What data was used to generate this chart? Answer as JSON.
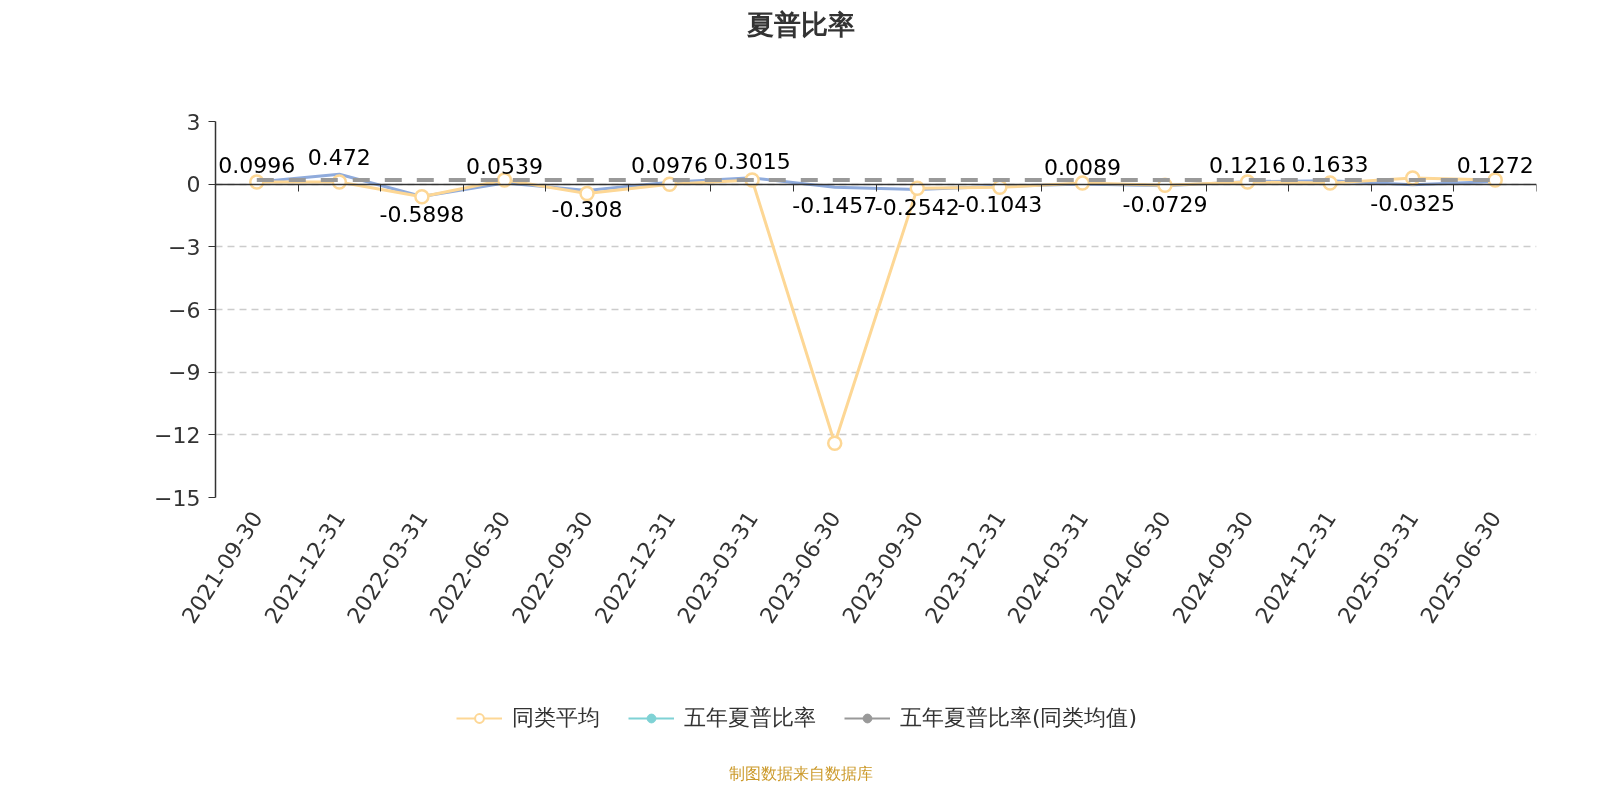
{
  "chart_data": {
    "type": "line",
    "title": "夏普比率",
    "categories": [
      "2021-09-30",
      "2021-12-31",
      "2022-03-31",
      "2022-06-30",
      "2022-09-30",
      "2022-12-31",
      "2023-03-31",
      "2023-06-30",
      "2023-09-30",
      "2023-12-31",
      "2024-03-31",
      "2024-06-30",
      "2024-09-30",
      "2024-12-31",
      "2025-03-31",
      "2025-06-30"
    ],
    "ylim": [
      -15,
      3
    ],
    "yticks": [
      3,
      0,
      -3,
      -6,
      -9,
      -12,
      -15
    ],
    "grid": "y",
    "legend": "bottom",
    "series": [
      {
        "color": "#8fabdc",
        "marker": "none",
        "values": [
          0.0996,
          0.472,
          -0.5898,
          0.0539,
          -0.308,
          0.0976,
          0.3015,
          -0.1457,
          -0.2542,
          -0.1043,
          0.0089,
          -0.0729,
          0.1216,
          0.1633,
          -0.0325,
          0.1272
        ],
        "value_labels": [
          "0.0996",
          "0.472",
          "-0.5898",
          "0.0539",
          "-0.308",
          "0.0976",
          "0.3015",
          "-0.1457",
          "-0.2542",
          "-0.1043",
          "0.0089",
          "-0.0729",
          "0.1216",
          "0.1633",
          "-0.0325",
          "0.1272"
        ]
      },
      {
        "name": "同类平均",
        "color": "#fdd795",
        "marker": "circle",
        "values": [
          0.1,
          0.1,
          -0.6,
          0.2,
          -0.45,
          0.0,
          0.2,
          -12.4,
          -0.2,
          -0.15,
          0.05,
          -0.05,
          0.1,
          0.05,
          0.3,
          0.2
        ]
      },
      {
        "name": "五年夏普比率",
        "color": "#7fd2d5",
        "marker": "none",
        "values": [
          null,
          null,
          null,
          null,
          null,
          null,
          null,
          null,
          null,
          null,
          null,
          null,
          null,
          null,
          null,
          null
        ]
      },
      {
        "name": "五年夏普比率(同类均值)",
        "color": "#999999",
        "marker": "none",
        "line_style": "dashed",
        "values": [
          0.2,
          0.2,
          0.2,
          0.2,
          0.2,
          0.2,
          0.2,
          0.2,
          0.2,
          0.2,
          0.2,
          0.2,
          0.2,
          0.2,
          0.2,
          0.2
        ]
      }
    ],
    "annotations": [
      "制图数据来自数据库"
    ]
  }
}
